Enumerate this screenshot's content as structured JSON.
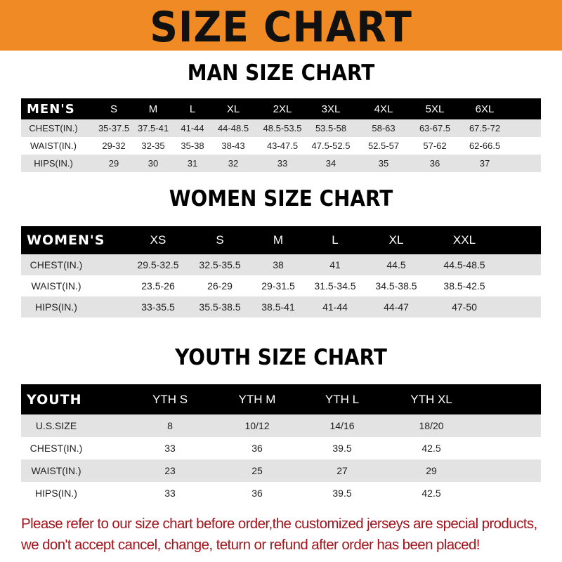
{
  "title": "SIZE CHART",
  "men": {
    "title": "MAN SIZE CHART",
    "header": [
      "MEN'S",
      "S",
      "M",
      "L",
      "XL",
      "2XL",
      "3XL",
      "4XL",
      "5XL",
      "6XL"
    ],
    "rows": [
      [
        "CHEST(IN.)",
        "35-37.5",
        "37.5-41",
        "41-44",
        "44-48.5",
        "48.5-53.5",
        "53.5-58",
        "58-63",
        "63-67.5",
        "67.5-72"
      ],
      [
        "WAIST(IN.)",
        "29-32",
        "32-35",
        "35-38",
        "38-43",
        "43-47.5",
        "47.5-52.5",
        "52.5-57",
        "57-62",
        "62-66.5"
      ],
      [
        "HIPS(IN.)",
        "29",
        "30",
        "31",
        "32",
        "33",
        "34",
        "35",
        "36",
        "37"
      ]
    ]
  },
  "women": {
    "title": "WOMEN SIZE CHART",
    "header": [
      "WOMEN'S",
      "XS",
      "S",
      "M",
      "L",
      "XL",
      "XXL"
    ],
    "rows": [
      [
        "CHEST(IN.)",
        "29.5-32.5",
        "32.5-35.5",
        "38",
        "41",
        "44.5",
        "44.5-48.5"
      ],
      [
        "WAIST(IN.)",
        "23.5-26",
        "26-29",
        "29-31.5",
        "31.5-34.5",
        "34.5-38.5",
        "38.5-42.5"
      ],
      [
        "HIPS(IN.)",
        "33-35.5",
        "35.5-38.5",
        "38.5-41",
        "41-44",
        "44-47",
        "47-50"
      ]
    ]
  },
  "youth": {
    "title": "YOUTH SIZE CHART",
    "header": [
      "YOUTH",
      "YTH S",
      "YTH M",
      "YTH L",
      "YTH XL"
    ],
    "rows": [
      [
        "U.S.SIZE",
        "8",
        "10/12",
        "14/16",
        "18/20"
      ],
      [
        "CHEST(IN.)",
        "33",
        "36",
        "39.5",
        "42.5"
      ],
      [
        "WAIST(IN.)",
        "23",
        "25",
        "27",
        "29"
      ],
      [
        "HIPS(IN.)",
        "33",
        "36",
        "39.5",
        "42.5"
      ]
    ]
  },
  "notice": [
    "Please refer to our size chart before order,the customized jerseys are special products,",
    "we don't accept cancel, change, teturn or refund after order has been placed!"
  ],
  "colors": {
    "banner": "#f08a24",
    "header_row": "#000000",
    "stripe": "#e3e3e3",
    "notice": "#a3141c"
  }
}
